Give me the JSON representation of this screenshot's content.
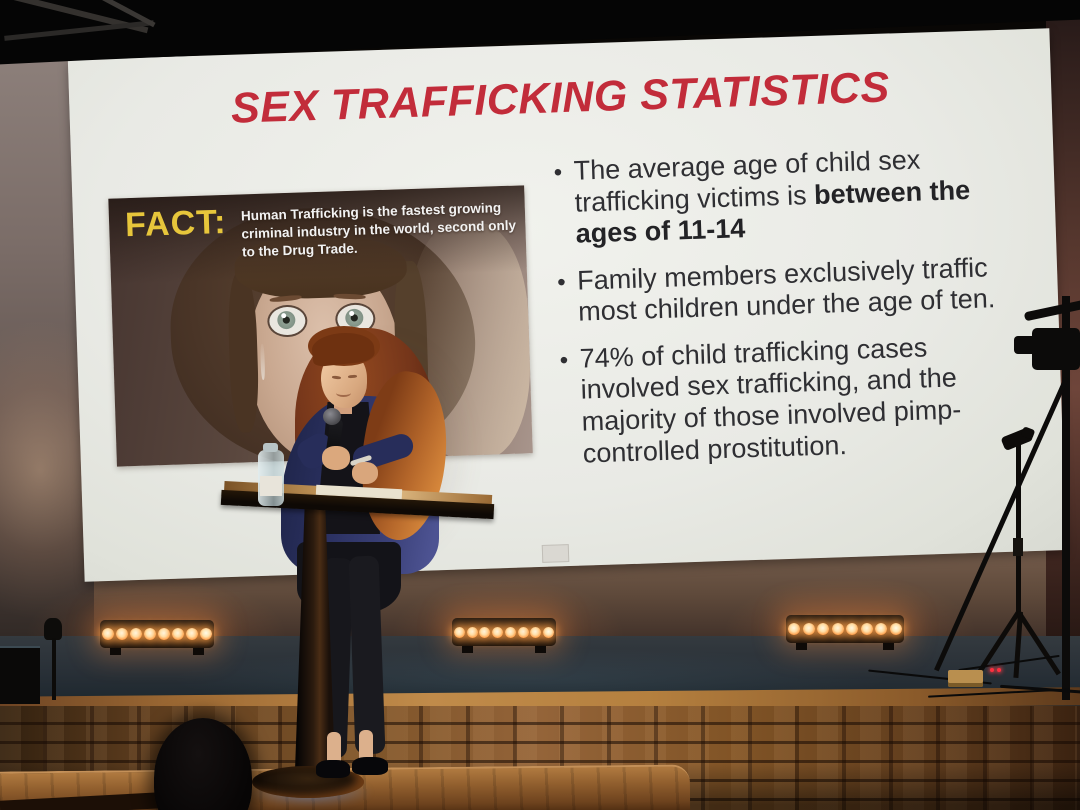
{
  "slide": {
    "title": "SEX TRAFFICKING STATISTICS",
    "fact": {
      "label": "FACT:",
      "text": "Human Trafficking is the fastest growing criminal industry in the world, second only to the Drug Trade.",
      "photo_subject": "crying young girl"
    },
    "bullets": [
      {
        "pre": "The average age of child sex trafficking victims is ",
        "bold": "between the ages of 11-14",
        "post": ""
      },
      {
        "pre": "Family members exclusively traffic most children under the age of ten.",
        "bold": "",
        "post": ""
      },
      {
        "pre": "74% of child trafficking cases involved sex trafficking, and the majority of those involved pimp-controlled prostitution.",
        "bold": "",
        "post": ""
      }
    ],
    "colors": {
      "title_red": "#c22c3a",
      "fact_yellow": "#e7c63b",
      "fact_text_white": "#f2f2f2",
      "bullet_text": "#2f2f33",
      "screen_white": "#e9eae5"
    }
  },
  "scene": {
    "stage_light_bars": 3,
    "bulbs_per_bar": 8,
    "stage_light_color": "#ff9c46",
    "podium_base_glow_color": "#4a8cff",
    "speaker_jacket_color": "#2c3263",
    "stone_wall_color": "#7e5429"
  }
}
